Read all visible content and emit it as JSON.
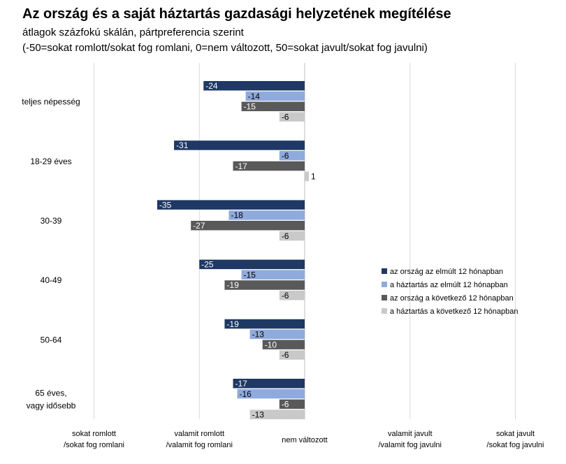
{
  "title": "Az ország és a saját háztartás gazdasági helyzetének megítélése",
  "subtitle1": "átlagok százfokú skálán, pártpreferencia szerint",
  "subtitle2": "(-50=sokat romlott/sokat fog romlani, 0=nem változott, 50=sokat javult/sokat fog javulni)",
  "chart_data": {
    "type": "bar",
    "orientation": "horizontal",
    "categories": [
      "teljes népesség",
      "18-29 éves",
      "30-39",
      "40-49",
      "50-64",
      "65 éves, vagy idősebb"
    ],
    "series": [
      {
        "name": "az ország az elmúlt 12 hónapban",
        "color": "#1f3864",
        "values": [
          -24,
          -31,
          -35,
          -25,
          -19,
          -17
        ]
      },
      {
        "name": "a háztartás az elmúlt 12 hónapban",
        "color": "#8faadc",
        "values": [
          -14,
          -6,
          -18,
          -15,
          -13,
          -16
        ]
      },
      {
        "name": "az ország a következő 12 hónapban",
        "color": "#595959",
        "values": [
          -15,
          -17,
          -27,
          -19,
          -10,
          -6
        ]
      },
      {
        "name": "a háztartás a következő 12 hónapban",
        "color": "#c9c9c9",
        "values": [
          -6,
          1,
          -6,
          -6,
          -6,
          -13
        ]
      }
    ],
    "xlim": [
      -50,
      50
    ],
    "x_ticks": [
      {
        "value": -50,
        "label": "sokat romlott\n/sokat fog romlani"
      },
      {
        "value": -25,
        "label": "valamit romlott\n/valamit fog romlani"
      },
      {
        "value": 0,
        "label": "nem változott"
      },
      {
        "value": 25,
        "label": "valamit javult\n/valamit fog javulni"
      },
      {
        "value": 50,
        "label": "sokat javult\n/sokat fog javulni"
      }
    ],
    "grid": true,
    "legend": "right"
  }
}
